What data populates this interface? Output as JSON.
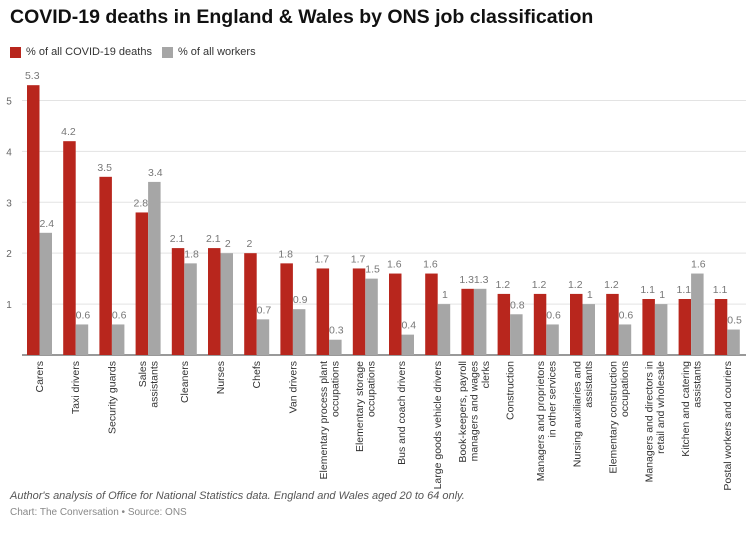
{
  "chart_data": {
    "type": "bar",
    "title": "COVID-19 deaths in England & Wales by ONS job classification",
    "categories": [
      "Carers",
      "Taxi drivers",
      "Security guards",
      "Sales assistants",
      "Cleaners",
      "Nurses",
      "Chefs",
      "Van drivers",
      "Elementary process plant occupations",
      "Elementary storage occupations",
      "Bus and coach drivers",
      "Large goods vehicle drivers",
      "Book-keepers, payroll managers and wages clerks",
      "Construction",
      "Managers and proprietors in other services",
      "Nursing auxiliaries and assistants",
      "Elementary construction occupations",
      "Managers and directors in retail and wholesale",
      "Kitchen and catering assistants",
      "Postal workers and couriers"
    ],
    "category_lines": [
      [
        "Carers"
      ],
      [
        "Taxi drivers"
      ],
      [
        "Security guards"
      ],
      [
        "Sales",
        "assistants"
      ],
      [
        "Cleaners"
      ],
      [
        "Nurses"
      ],
      [
        "Chefs"
      ],
      [
        "Van drivers"
      ],
      [
        "Elementary process plant",
        "occupations"
      ],
      [
        "Elementary storage",
        "occupations"
      ],
      [
        "Bus and coach drivers"
      ],
      [
        "Large goods vehicle drivers"
      ],
      [
        "Book-keepers, payroll",
        "managers and wages",
        "clerks"
      ],
      [
        "Construction"
      ],
      [
        "Managers and proprietors",
        "in other services"
      ],
      [
        "Nursing auxiliaries and",
        "assistants"
      ],
      [
        "Elementary construction",
        "occupations"
      ],
      [
        "Managers and directors in",
        "retail and wholesale"
      ],
      [
        "Kitchen and catering",
        "assistants"
      ],
      [
        "Postal workers and couriers"
      ]
    ],
    "series": [
      {
        "name": "% of all COVID-19 deaths",
        "color": "#b8261d",
        "values": [
          5.3,
          4.2,
          3.5,
          2.8,
          2.1,
          2.1,
          2,
          1.8,
          1.7,
          1.7,
          1.6,
          1.6,
          1.3,
          1.2,
          1.2,
          1.2,
          1.2,
          1.1,
          1.1,
          1.1
        ]
      },
      {
        "name": "% of all workers",
        "color": "#a6a6a6",
        "values": [
          2.4,
          0.6,
          0.6,
          3.4,
          1.8,
          2,
          0.7,
          0.9,
          0.3,
          1.5,
          0.4,
          1,
          1.3,
          0.8,
          0.6,
          1,
          0.6,
          1,
          1.6,
          0.5
        ]
      }
    ],
    "ylim": [
      0,
      5.5
    ],
    "yticks": [
      1,
      2,
      3,
      4,
      5
    ],
    "grid": true,
    "legend_position": "top-left"
  },
  "note": "Author's analysis of Office for National Statistics data. England and Wales aged 20 to 64 only.",
  "source": "Chart: The Conversation • Source: ONS"
}
